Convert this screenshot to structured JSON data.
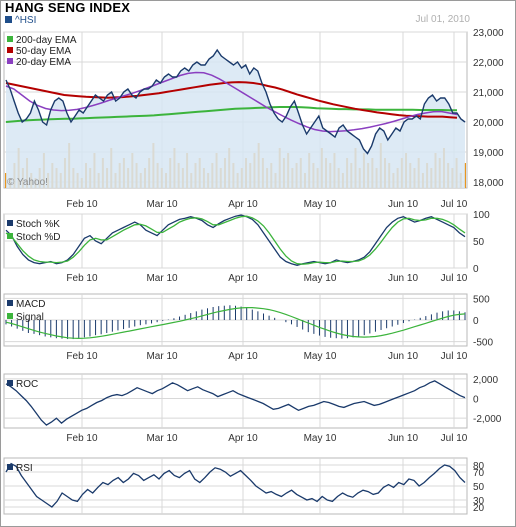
{
  "header": {
    "title": "HANG SENG INDEX",
    "ticker": "^HSI",
    "date": "Jul 01, 2010",
    "watermark": "© Yahoo!"
  },
  "colors": {
    "price_line": "#1a3a6b",
    "price_fill": "#d7e6f3",
    "ema200": "#3cb43c",
    "ema50": "#b40000",
    "ema20": "#8a3fc0",
    "volume": "#e8961e",
    "stoch_k": "#1a3a6b",
    "stoch_d": "#3cb43c",
    "grid": "#d8d8d8"
  },
  "chart_data": [
    {
      "type": "line",
      "panel": "price",
      "legend": [
        "200-day EMA",
        "50-day EMA",
        "20-day EMA"
      ],
      "legend_position": "top-left",
      "x_tick_labels": [
        "Feb 10",
        "Mar 10",
        "Apr 10",
        "May 10",
        "Jun 10",
        "Jul 10"
      ],
      "y_tick_labels": [
        "23,000",
        "22,000",
        "21,000",
        "20,000",
        "19,000",
        "18,000"
      ],
      "ylim": [
        17800,
        23000
      ],
      "xlim": [
        0,
        125
      ],
      "grid": true,
      "series": [
        {
          "name": "^HSI",
          "role": "price",
          "values": [
            21400,
            21100,
            20700,
            20300,
            20000,
            20100,
            20300,
            20700,
            20400,
            20000,
            19900,
            20400,
            20700,
            20800,
            20700,
            20300,
            20000,
            20200,
            20400,
            20300,
            20500,
            20700,
            20900,
            20800,
            20700,
            20900,
            21000,
            20700,
            20800,
            21000,
            21100,
            20900,
            20800,
            21000,
            21100,
            21100,
            21200,
            21400,
            21300,
            21500,
            21600,
            21500,
            21500,
            21700,
            21800,
            21700,
            21900,
            22000,
            21900,
            21900,
            22100,
            22200,
            22400,
            22200,
            22100,
            22000,
            21900,
            22000,
            21800,
            21900,
            21600,
            21800,
            21700,
            21300,
            21000,
            20600,
            20300,
            20100,
            20000,
            20200,
            20500,
            20700,
            20300,
            19900,
            19600,
            19800,
            20000,
            20200,
            19800,
            19700,
            19600,
            19500,
            19800,
            19900,
            19700,
            19600,
            19500,
            19400,
            19100,
            18950,
            19200,
            19600,
            19800,
            19700,
            19400,
            19600,
            19800,
            19700,
            20000,
            20100,
            20100,
            20200,
            20100,
            20600,
            20800,
            20900,
            20700,
            20800,
            20800,
            20600,
            20300,
            20300,
            20100,
            20000
          ]
        },
        {
          "name": "200-day EMA",
          "values": [
            20000,
            20020,
            20040,
            20060,
            20070,
            20080,
            20090,
            20100,
            20110,
            20110,
            20120,
            20130,
            20140,
            20150,
            20160,
            20170,
            20180,
            20190,
            20200,
            20210,
            20220,
            20240,
            20260,
            20280,
            20300,
            20320,
            20340,
            20360,
            20380,
            20400,
            20420,
            20440,
            20450,
            20460,
            20470,
            20480,
            20490,
            20500,
            20500,
            20500,
            20490,
            20480,
            20460,
            20450,
            20440,
            20430,
            20430,
            20420,
            20420,
            20420,
            20410,
            20410,
            20410,
            20410,
            20410,
            20410,
            20400,
            20400,
            20400,
            20400,
            20390,
            20390
          ]
        },
        {
          "name": "50-day EMA",
          "values": [
            21300,
            21250,
            21200,
            21150,
            21100,
            21050,
            21000,
            20950,
            20900,
            20880,
            20860,
            20840,
            20830,
            20820,
            20810,
            20820,
            20830,
            20850,
            20870,
            20900,
            20930,
            20960,
            21000,
            21040,
            21080,
            21120,
            21160,
            21200,
            21240,
            21270,
            21300,
            21320,
            21330,
            21320,
            21300,
            21260,
            21200,
            21150,
            21080,
            21000,
            20920,
            20850,
            20780,
            20710,
            20650,
            20590,
            20540,
            20490,
            20440,
            20400,
            20360,
            20320,
            20290,
            20260,
            20230,
            20210,
            20200,
            20190,
            20180,
            20180,
            20180,
            20160,
            20140
          ]
        },
        {
          "name": "20-day EMA",
          "values": [
            21200,
            21100,
            20900,
            20700,
            20550,
            20450,
            20400,
            20380,
            20390,
            20420,
            20480,
            20550,
            20630,
            20720,
            20800,
            20880,
            20960,
            21050,
            21150,
            21250,
            21350,
            21450,
            21550,
            21620,
            21650,
            21640,
            21560,
            21430,
            21280,
            21120,
            20960,
            20800,
            20640,
            20480,
            20340,
            20200,
            20070,
            19950,
            19840,
            19750,
            19700,
            19680,
            19690,
            19710,
            19740,
            19780,
            19830,
            19890,
            19950,
            20020,
            20100,
            20180,
            20250,
            20300,
            20340,
            20350,
            20300,
            20250
          ]
        }
      ],
      "volume": [
        3,
        2,
        5,
        8,
        4,
        6,
        3,
        2,
        4,
        7,
        3,
        5,
        4,
        3,
        6,
        9,
        4,
        3,
        2,
        5,
        4,
        7,
        3,
        6,
        4,
        8,
        3,
        5,
        6,
        4,
        7,
        5,
        3,
        4,
        6,
        9,
        5,
        4,
        3,
        6,
        8,
        5,
        4,
        7,
        3,
        5,
        6,
        4,
        3,
        5,
        7,
        4,
        6,
        8,
        5,
        3,
        4,
        6,
        5,
        7,
        9,
        6,
        4,
        5,
        3,
        8,
        6,
        7,
        4,
        5,
        6,
        3,
        7,
        5,
        4,
        8,
        6,
        5,
        7,
        4,
        3,
        6,
        5,
        8,
        4,
        7,
        5,
        6,
        4,
        9,
        6,
        5,
        3,
        4,
        6,
        7,
        5,
        4,
        6,
        3,
        5,
        4,
        7,
        6,
        8,
        5,
        4,
        6,
        3,
        5
      ]
    },
    {
      "type": "line",
      "panel": "stochastic",
      "legend": [
        "Stoch %K",
        "Stoch %D"
      ],
      "legend_position": "top-left",
      "x_tick_labels": [
        "Feb 10",
        "Mar 10",
        "Apr 10",
        "May 10",
        "Jun 10",
        "Jul 10"
      ],
      "y_tick_labels": [
        "100",
        "50",
        "0"
      ],
      "ylim": [
        0,
        100
      ],
      "xlim": [
        0,
        125
      ],
      "series": [
        {
          "name": "Stoch %K",
          "values": [
            70,
            60,
            40,
            25,
            15,
            10,
            8,
            10,
            12,
            8,
            10,
            15,
            25,
            40,
            55,
            60,
            50,
            45,
            55,
            65,
            70,
            75,
            80,
            85,
            80,
            70,
            65,
            60,
            70,
            80,
            85,
            90,
            92,
            95,
            92,
            88,
            80,
            75,
            82,
            88,
            92,
            96,
            98,
            95,
            90,
            80,
            65,
            50,
            35,
            20,
            12,
            8,
            5,
            8,
            10,
            12,
            10,
            8,
            10,
            15,
            12,
            10,
            12,
            15,
            20,
            30,
            45,
            60,
            75,
            85,
            92,
            95,
            90,
            85,
            88,
            92,
            95,
            90,
            85,
            80,
            75,
            65,
            58
          ]
        },
        {
          "name": "Stoch %D",
          "values": [
            65,
            58,
            45,
            32,
            22,
            15,
            12,
            11,
            11,
            10,
            11,
            13,
            20,
            30,
            42,
            52,
            55,
            52,
            52,
            58,
            64,
            70,
            75,
            80,
            81,
            78,
            72,
            66,
            66,
            72,
            78,
            85,
            89,
            92,
            93,
            91,
            86,
            80,
            80,
            84,
            88,
            92,
            95,
            96,
            93,
            87,
            78,
            65,
            50,
            35,
            22,
            13,
            8,
            7,
            8,
            10,
            11,
            10,
            10,
            12,
            13,
            12,
            12,
            13,
            17,
            24,
            35,
            48,
            62,
            75,
            85,
            91,
            92,
            89,
            88,
            89,
            92,
            92,
            90,
            86,
            80,
            72,
            65
          ]
        }
      ]
    },
    {
      "type": "bar",
      "panel": "macd",
      "legend": [
        "MACD",
        "Signal"
      ],
      "legend_position": "top-left",
      "x_tick_labels": [
        "Feb 10",
        "Mar 10",
        "Apr 10",
        "May 10",
        "Jun 10",
        "Jul 10"
      ],
      "y_tick_labels": [
        "500",
        "0",
        "-500"
      ],
      "ylim": [
        -600,
        600
      ],
      "xlim": [
        0,
        125
      ],
      "series": [
        {
          "name": "MACD",
          "values": [
            -100,
            -150,
            -200,
            -250,
            -300,
            -320,
            -350,
            -380,
            -400,
            -420,
            -430,
            -440,
            -440,
            -420,
            -400,
            -380,
            -350,
            -330,
            -300,
            -270,
            -240,
            -210,
            -180,
            -150,
            -120,
            -100,
            -80,
            -50,
            -20,
            10,
            40,
            80,
            120,
            160,
            200,
            240,
            270,
            300,
            320,
            330,
            340,
            330,
            310,
            280,
            240,
            200,
            150,
            100,
            50,
            0,
            -50,
            -100,
            -160,
            -220,
            -280,
            -320,
            -360,
            -390,
            -410,
            -420,
            -430,
            -420,
            -400,
            -380,
            -350,
            -310,
            -270,
            -230,
            -190,
            -150,
            -110,
            -70,
            -30,
            10,
            50,
            90,
            130,
            170,
            200,
            220,
            220,
            200,
            180
          ]
        },
        {
          "name": "Signal",
          "values": [
            -50,
            -80,
            -120,
            -160,
            -200,
            -240,
            -280,
            -310,
            -340,
            -370,
            -390,
            -410,
            -420,
            -425,
            -420,
            -410,
            -395,
            -375,
            -355,
            -330,
            -305,
            -280,
            -255,
            -230,
            -205,
            -180,
            -155,
            -130,
            -105,
            -80,
            -55,
            -30,
            0,
            30,
            60,
            95,
            130,
            165,
            195,
            220,
            245,
            265,
            280,
            285,
            285,
            275,
            260,
            240,
            210,
            170,
            130,
            80,
            30,
            -20,
            -70,
            -120,
            -170,
            -215,
            -260,
            -300,
            -335,
            -360,
            -380,
            -390,
            -395,
            -390,
            -380,
            -360,
            -335,
            -305,
            -270,
            -235,
            -195,
            -155,
            -115,
            -75,
            -35,
            5,
            45,
            80,
            110,
            130,
            140
          ]
        }
      ]
    },
    {
      "type": "line",
      "panel": "roc",
      "legend": [
        "ROC"
      ],
      "legend_position": "top-left",
      "x_tick_labels": [
        "Feb 10",
        "Mar 10",
        "Apr 10",
        "May 10",
        "Jun 10",
        "Jul 10"
      ],
      "y_tick_labels": [
        "2,000",
        "0",
        "-2,000"
      ],
      "ylim": [
        -3000,
        2500
      ],
      "xlim": [
        0,
        125
      ],
      "series": [
        {
          "name": "ROC",
          "values": [
            1500,
            1200,
            800,
            300,
            -200,
            -800,
            -1500,
            -2200,
            -2700,
            -2400,
            -2000,
            -2500,
            -2100,
            -1800,
            -1500,
            -1200,
            -1000,
            -700,
            -400,
            -200,
            100,
            300,
            400,
            300,
            500,
            800,
            1100,
            900,
            700,
            500,
            800,
            1000,
            1300,
            1600,
            1400,
            1100,
            800,
            1000,
            1200,
            900,
            700,
            500,
            200,
            400,
            600,
            800,
            500,
            300,
            100,
            -100,
            -300,
            -500,
            -800,
            -1100,
            -1000,
            -800,
            -600,
            -900,
            -1200,
            -1000,
            -800,
            -700,
            -500,
            -300,
            -400,
            -600,
            -800,
            -900,
            -700,
            -500,
            -400,
            -300,
            -500,
            -700,
            -600,
            -400,
            -200,
            0,
            200,
            400,
            600,
            800,
            1100,
            1300,
            1600,
            1800,
            1500,
            1200,
            900,
            600,
            300,
            100
          ]
        }
      ]
    },
    {
      "type": "line",
      "panel": "rsi",
      "legend": [
        "RSI"
      ],
      "legend_position": "top-left",
      "x_tick_labels": [
        "Feb 10",
        "Mar 10",
        "Apr 10",
        "May 10",
        "Jun 10",
        "Jul 10"
      ],
      "y_tick_labels": [
        "80",
        "70",
        "50",
        "30",
        "20"
      ],
      "ylim": [
        10,
        90
      ],
      "xlim": [
        0,
        125
      ],
      "series": [
        {
          "name": "RSI",
          "values": [
            70,
            82,
            78,
            65,
            55,
            45,
            35,
            30,
            25,
            20,
            28,
            40,
            35,
            30,
            28,
            38,
            45,
            40,
            48,
            55,
            52,
            58,
            62,
            55,
            60,
            68,
            65,
            58,
            62,
            66,
            60,
            68,
            72,
            65,
            62,
            68,
            72,
            60,
            55,
            62,
            70,
            76,
            74,
            70,
            64,
            68,
            72,
            65,
            58,
            50,
            45,
            40,
            42,
            38,
            35,
            40,
            44,
            38,
            34,
            30,
            32,
            28,
            35,
            30,
            28,
            35,
            40,
            36,
            34,
            40,
            44,
            42,
            38,
            40,
            48,
            52,
            48,
            55,
            52,
            60,
            58,
            50,
            55,
            62,
            68,
            75,
            80,
            78,
            72,
            62,
            55
          ]
        }
      ]
    }
  ]
}
